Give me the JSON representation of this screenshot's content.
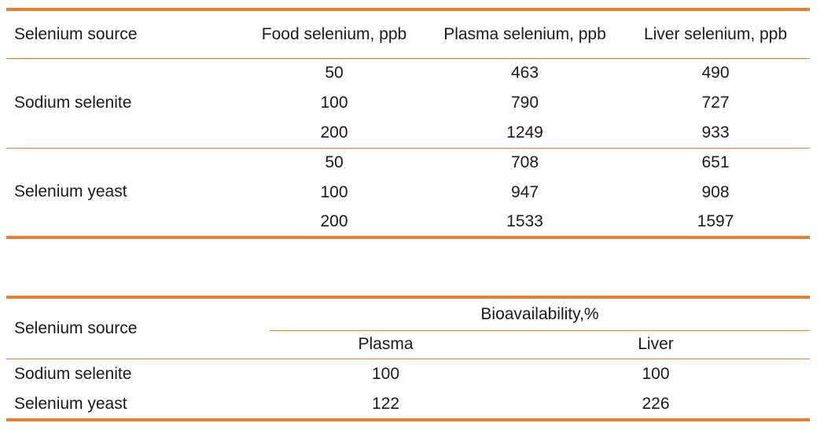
{
  "page": {
    "background": "#ffffff",
    "accent_color": "#ED7D31",
    "text_color": "#1a1a1a"
  },
  "selenium_table": {
    "headers": {
      "source": "Selenium source",
      "food": "Food selenium, ppb",
      "plasma": "Plasma selenium, ppb",
      "liver": "Liver selenium, ppb"
    },
    "groups": [
      {
        "source": "Sodium selenite",
        "rows": [
          {
            "food": "50",
            "plasma": "463",
            "liver": "490"
          },
          {
            "food": "100",
            "plasma": "790",
            "liver": "727"
          },
          {
            "food": "200",
            "plasma": "1249",
            "liver": "933"
          }
        ]
      },
      {
        "source": "Selenium yeast",
        "rows": [
          {
            "food": "50",
            "plasma": "708",
            "liver": "651"
          },
          {
            "food": "100",
            "plasma": "947",
            "liver": "908"
          },
          {
            "food": "200",
            "plasma": "1533",
            "liver": "1597"
          }
        ]
      }
    ]
  },
  "bioavailability_table": {
    "headers": {
      "source": "Selenium source",
      "group": "Bioavailability,%",
      "plasma": "Plasma",
      "liver": "Liver"
    },
    "rows": [
      {
        "source": "Sodium selenite",
        "plasma": "100",
        "liver": "100"
      },
      {
        "source": "Selenium yeast",
        "plasma": "122",
        "liver": "226"
      }
    ]
  }
}
